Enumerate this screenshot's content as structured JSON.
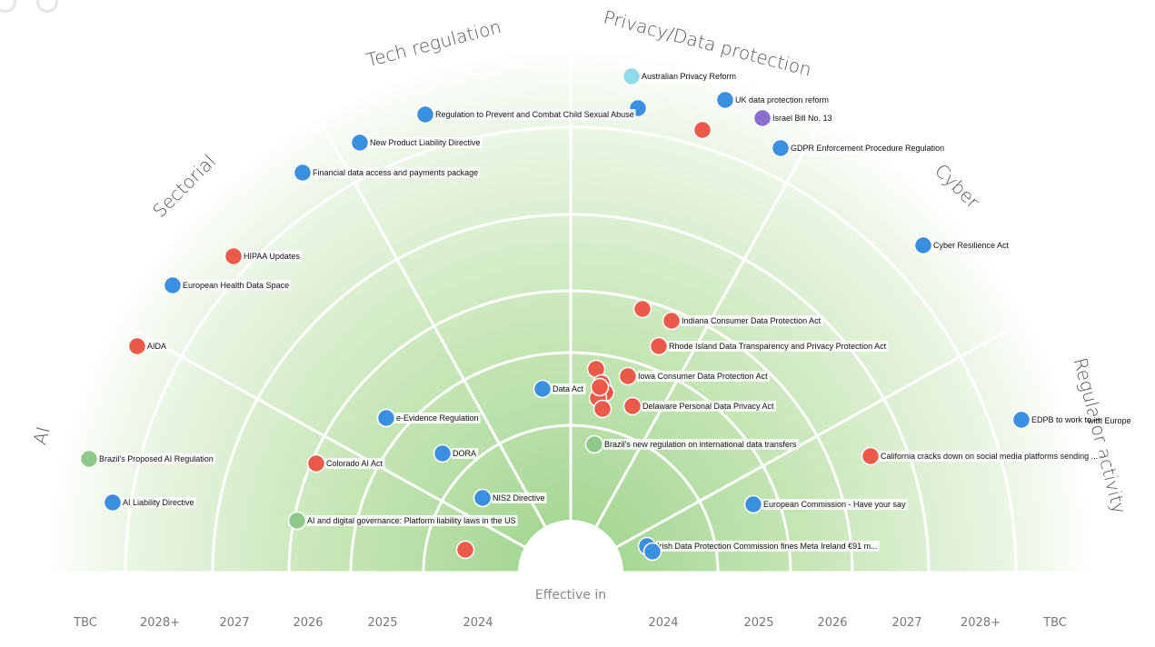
{
  "chart_data": {
    "type": "radar",
    "sectors": [
      "AI",
      "Sectorial",
      "Tech regulation",
      "Privacy/Data protection",
      "Cyber",
      "Regulator activity"
    ],
    "rings": [
      "2024",
      "2025",
      "2026",
      "2027",
      "2028+",
      "TBC"
    ],
    "axis_title": "Effective in",
    "bottom_labels_left": [
      "TBC",
      "2028+",
      "2027",
      "2026",
      "2025",
      "2024"
    ],
    "bottom_labels_right": [
      "2024",
      "2025",
      "2026",
      "2027",
      "2028+",
      "TBC"
    ],
    "colors": {
      "blue": "#3b8fdf",
      "red": "#eb5a49",
      "green": "#8ec98a",
      "lightblue": "#8fdbea",
      "purple": "#8a6fcf",
      "gradient_inner": "#9ed38c",
      "gradient_outer": "#ffffff",
      "divider": "#ffffff"
    },
    "items": [
      {
        "sector": "Privacy/Data protection",
        "ring": "TBC",
        "label": "Australian Privacy Reform",
        "color": "lightblue"
      },
      {
        "sector": "Privacy/Data protection",
        "ring": "TBC",
        "label": "UK data protection reform",
        "color": "blue"
      },
      {
        "sector": "Privacy/Data protection",
        "ring": "TBC",
        "label": "Israel Bill No. 13",
        "color": "purple"
      },
      {
        "sector": "Privacy/Data protection",
        "ring": "TBC",
        "label": "",
        "color": "blue"
      },
      {
        "sector": "Privacy/Data protection",
        "ring": "TBC",
        "label": "",
        "color": "red"
      },
      {
        "sector": "Privacy/Data protection",
        "ring": "TBC",
        "label": "GDPR Enforcement Procedure Regulation",
        "color": "blue"
      },
      {
        "sector": "Cyber",
        "ring": "TBC",
        "label": "Cyber Resilience Act",
        "color": "blue"
      },
      {
        "sector": "Tech regulation",
        "ring": "TBC",
        "label": "Regulation to Prevent and Combat Child Sexual Abuse",
        "color": "blue"
      },
      {
        "sector": "Tech regulation",
        "ring": "TBC",
        "label": "New Product Liability Directive",
        "color": "blue"
      },
      {
        "sector": "Sectorial",
        "ring": "TBC",
        "label": "Financial data access and payments package",
        "color": "blue"
      },
      {
        "sector": "Sectorial",
        "ring": "2027",
        "label": "HIPAA Updates",
        "color": "red"
      },
      {
        "sector": "Sectorial",
        "ring": "2028+",
        "label": "European Health Data Space",
        "color": "blue"
      },
      {
        "sector": "AI",
        "ring": "2028+",
        "label": "AIDA",
        "color": "red"
      },
      {
        "sector": "AI",
        "ring": "TBC",
        "label": "Brazil's Proposed AI Regulation",
        "color": "green"
      },
      {
        "sector": "AI",
        "ring": "TBC",
        "label": "AI Liability Directive",
        "color": "blue"
      },
      {
        "sector": "AI",
        "ring": "2026",
        "label": "Colorado AI Act",
        "color": "red"
      },
      {
        "sector": "AI",
        "ring": "2026",
        "label": "AI and digital governance: Platform liability laws in the US",
        "color": "green"
      },
      {
        "sector": "AI",
        "ring": "2024",
        "label": "",
        "color": "red"
      },
      {
        "sector": "Tech regulation",
        "ring": "2025",
        "label": "e-Evidence Regulation",
        "color": "blue"
      },
      {
        "sector": "Tech regulation",
        "ring": "2024",
        "label": "DORA",
        "color": "blue"
      },
      {
        "sector": "AI",
        "ring": "2024",
        "label": "NIS2 Directive",
        "color": "blue"
      },
      {
        "sector": "Tech regulation",
        "ring": "2024",
        "label": "Data Act",
        "color": "blue"
      },
      {
        "sector": "Privacy/Data protection",
        "ring": "2025",
        "label": "",
        "color": "red"
      },
      {
        "sector": "Privacy/Data protection",
        "ring": "2025",
        "label": "Indiana Consumer Data Protection Act",
        "color": "red"
      },
      {
        "sector": "Privacy/Data protection",
        "ring": "2025",
        "label": "Rhode Island Data Transparency and Privacy Protection Act",
        "color": "red"
      },
      {
        "sector": "Privacy/Data protection",
        "ring": "2024",
        "label": "Iowa Consumer Data Protection Act",
        "color": "red"
      },
      {
        "sector": "Privacy/Data protection",
        "ring": "2024",
        "label": "Delaware Personal Data Privacy Act",
        "color": "red"
      },
      {
        "sector": "Privacy/Data protection",
        "ring": "2024",
        "label": "",
        "color": "red"
      },
      {
        "sector": "Privacy/Data protection",
        "ring": "2024",
        "label": "",
        "color": "red"
      },
      {
        "sector": "Privacy/Data protection",
        "ring": "2024",
        "label": "",
        "color": "red"
      },
      {
        "sector": "Privacy/Data protection",
        "ring": "2024",
        "label": "",
        "color": "red"
      },
      {
        "sector": "Privacy/Data protection",
        "ring": "2024",
        "label": "",
        "color": "red"
      },
      {
        "sector": "Privacy/Data protection",
        "ring": "2024",
        "label": "",
        "color": "red"
      },
      {
        "sector": "Regulator activity",
        "ring": "2024",
        "label": "Brazil's new regulation on international data transfers",
        "color": "green"
      },
      {
        "sector": "Regulator activity",
        "ring": "TBC",
        "label": "EDPB to work to",
        "color": "blue"
      },
      {
        "sector": "Regulator activity",
        "ring": "TBC",
        "label": "with Europe",
        "color": "blue"
      },
      {
        "sector": "Regulator activity",
        "ring": "2027",
        "label": "California cracks down on social media platforms sending ...",
        "color": "red"
      },
      {
        "sector": "Regulator activity",
        "ring": "2025",
        "label": "European Commission - Have your say",
        "color": "blue"
      },
      {
        "sector": "Regulator activity",
        "ring": "2024",
        "label": "Irish Data Protection Commission fines Meta Ireland €91 m...",
        "color": "blue"
      },
      {
        "sector": "Regulator activity",
        "ring": "2024",
        "label": "",
        "color": "blue"
      }
    ]
  }
}
